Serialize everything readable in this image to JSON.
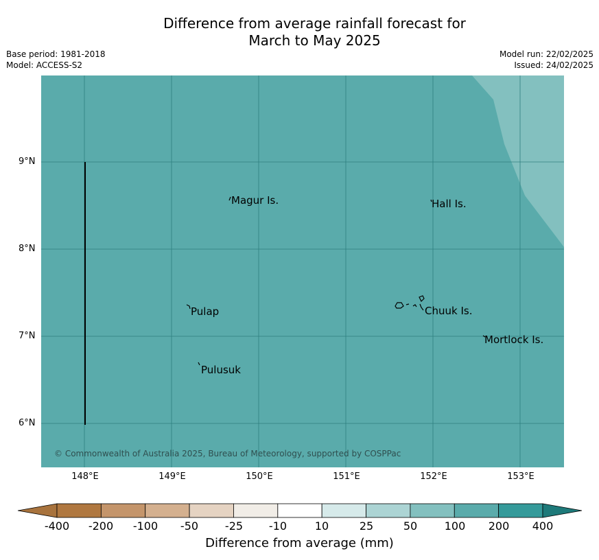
{
  "title": {
    "line1": "Difference from average rainfall forecast for",
    "line2": "March to May 2025"
  },
  "meta": {
    "base_period": "Base period: 1981-2018",
    "model": "Model: ACCESS-S2",
    "model_run": "Model run: 22/02/2025",
    "issued": "Issued: 24/02/2025"
  },
  "map": {
    "background_color": "#5aabab",
    "anomaly_region_color": "#83c0bf",
    "y_ticks": [
      "9°N",
      "8°N",
      "7°N",
      "6°N"
    ],
    "x_ticks": [
      "148°E",
      "149°E",
      "150°E",
      "151°E",
      "152°E",
      "153°E"
    ],
    "places": [
      "Magur Is.",
      "Hall Is.",
      "Pulap",
      "Chuuk Is.",
      "Mortlock Is.",
      "Pulusuk"
    ],
    "copyright": "© Commonwealth of Australia 2025, Bureau of Meteorology, supported by COSPPac"
  },
  "legend": {
    "title": "Difference from average (mm)",
    "ticks": [
      "-400",
      "-200",
      "-100",
      "-50",
      "-25",
      "-10",
      "10",
      "25",
      "50",
      "100",
      "200",
      "400"
    ],
    "colors": [
      "#a8733d",
      "#b07840",
      "#c4956b",
      "#d4b08f",
      "#e5d3c2",
      "#f1ede7",
      "#ffffff",
      "#d6eaea",
      "#acd4d4",
      "#83c0bf",
      "#5aabab",
      "#359a9a",
      "#1e7a7a"
    ]
  }
}
